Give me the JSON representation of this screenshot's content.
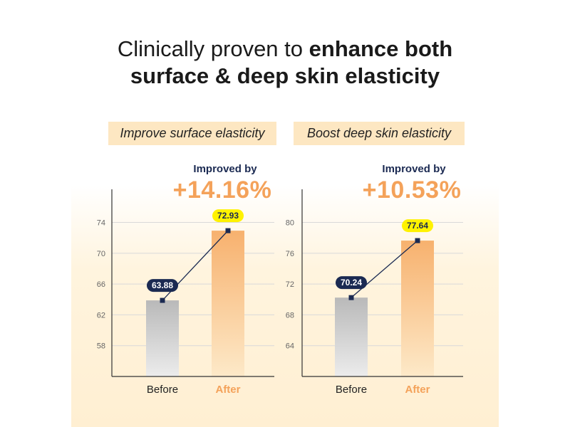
{
  "headline": {
    "regular": "Clinically proven to ",
    "bold_1": "enhance both",
    "bold_2": "surface & deep skin elasticity"
  },
  "colors": {
    "before_bar": "#c4c4c4",
    "after_bar": "#f7b16e",
    "label_dark": "#1b2a52",
    "label_yellow": "#fff200",
    "accent": "#f4a25a",
    "pill_bg": "#fde7c2"
  },
  "chart_data": [
    {
      "type": "bar",
      "title": "Improve surface elasticity",
      "improvement_label": "Improved by",
      "improvement_value": "+14.16%",
      "categories": [
        "Before",
        "After"
      ],
      "values": [
        63.88,
        72.93
      ],
      "value_labels": [
        "63.88",
        "72.93"
      ],
      "yticks": [
        58,
        62,
        66,
        70,
        74
      ],
      "ytick_labels": [
        "58",
        "62",
        "66",
        "70",
        "74"
      ],
      "ylim": [
        54,
        78.3
      ],
      "grid": true
    },
    {
      "type": "bar",
      "title": "Boost deep skin elasticity",
      "improvement_label": "Improved by",
      "improvement_value": "+10.53%",
      "categories": [
        "Before",
        "After"
      ],
      "values": [
        70.24,
        77.64
      ],
      "value_labels": [
        "70.24",
        "77.64"
      ],
      "yticks": [
        64,
        68,
        72,
        76,
        80
      ],
      "ytick_labels": [
        "64",
        "68",
        "72",
        "76",
        "80"
      ],
      "ylim": [
        60,
        84.3
      ],
      "grid": true
    }
  ]
}
